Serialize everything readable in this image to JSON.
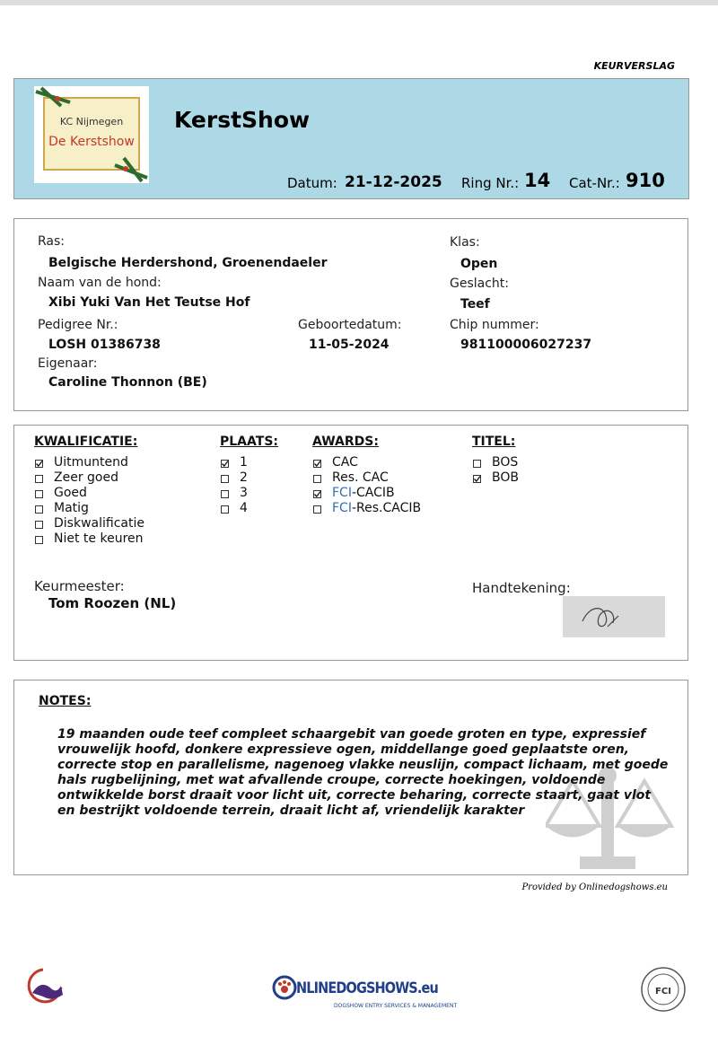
{
  "header": {
    "doc_type": "KEURVERSLAG",
    "logo_line1": "KC Nijmegen",
    "logo_line2": "De Kerstshow",
    "title": "KerstShow",
    "date_label": "Datum:",
    "date": "21-12-2025",
    "ring_label": "Ring Nr.:",
    "ring": "14",
    "cat_label": "Cat-Nr.:",
    "cat": "910"
  },
  "dog": {
    "fields": [
      {
        "label": "Ras:",
        "value": "Belgische Herdershond, Groenendaeler"
      },
      {
        "label": "Klas:",
        "value": "Open"
      },
      {
        "label": "Naam van de hond:",
        "value": "Xibi Yuki Van Het Teutse Hof"
      },
      {
        "label": "Geslacht:",
        "value": "Teef"
      },
      {
        "label": "Pedigree Nr.:",
        "value": "LOSH 01386738"
      },
      {
        "label": "Geboortedatum:",
        "value": "11-05-2024"
      },
      {
        "label": "Chip nummer:",
        "value": "981100006027237"
      },
      {
        "label": "Eigenaar:",
        "value": "Caroline Thonnon (BE)"
      }
    ]
  },
  "qualification": {
    "columns": [
      {
        "heading": "KWALIFICATIE:",
        "items": [
          {
            "label": "Uitmuntend",
            "checked": true
          },
          {
            "label": "Zeer goed",
            "checked": false
          },
          {
            "label": "Goed",
            "checked": false
          },
          {
            "label": "Matig",
            "checked": false
          },
          {
            "label": "Diskwalificatie",
            "checked": false
          },
          {
            "label": "Niet te keuren",
            "checked": false
          }
        ]
      },
      {
        "heading": "PLAATS:",
        "items": [
          {
            "label": "1",
            "checked": true
          },
          {
            "label": "2",
            "checked": false
          },
          {
            "label": "3",
            "checked": false
          },
          {
            "label": "4",
            "checked": false
          }
        ]
      },
      {
        "heading": "AWARDS:",
        "items": [
          {
            "label": "CAC",
            "checked": true
          },
          {
            "label": "Res. CAC",
            "checked": false
          },
          {
            "prefix": "FCI",
            "label": "-CACIB",
            "checked": true
          },
          {
            "prefix": "FCI",
            "label": "-Res.CACIB",
            "checked": false
          }
        ]
      },
      {
        "heading": "TITEL:",
        "items": [
          {
            "label": "BOS",
            "checked": false
          },
          {
            "label": "BOB",
            "checked": true
          }
        ]
      }
    ],
    "judge_label": "Keurmeester:",
    "judge": "Tom Roozen (NL)",
    "signature_label": "Handtekening:"
  },
  "notes": {
    "heading": "NOTES:",
    "lines": [
      "19 maanden oude teef compleet schaargebit van goede groten en type, expressief",
      "vrouwelijk hoofd,  donkere expressieve ogen, middellange goed geplaatste oren,",
      "correcte stop en parallelisme, nagenoeg vlakke neuslijn, compact lichaam, met goede",
      "hals rugbelijning, met wat afvallende croupe, correcte hoekingen, voldoende",
      "ontwikkelde borst draait voor licht uit, correcte beharing, correcte staart,  gaat vlot",
      "en bestrijkt voldoende terrein, draait licht af, vriendelijk karakter"
    ]
  },
  "footer": {
    "provided_by": "Provided by Onlinedogshows.eu",
    "brand": "NLINEDOGSHOWS.eu",
    "brand_tagline": "DOGSHOW ENTRY SERVICES & MANAGEMENT",
    "fci": "FCI"
  }
}
